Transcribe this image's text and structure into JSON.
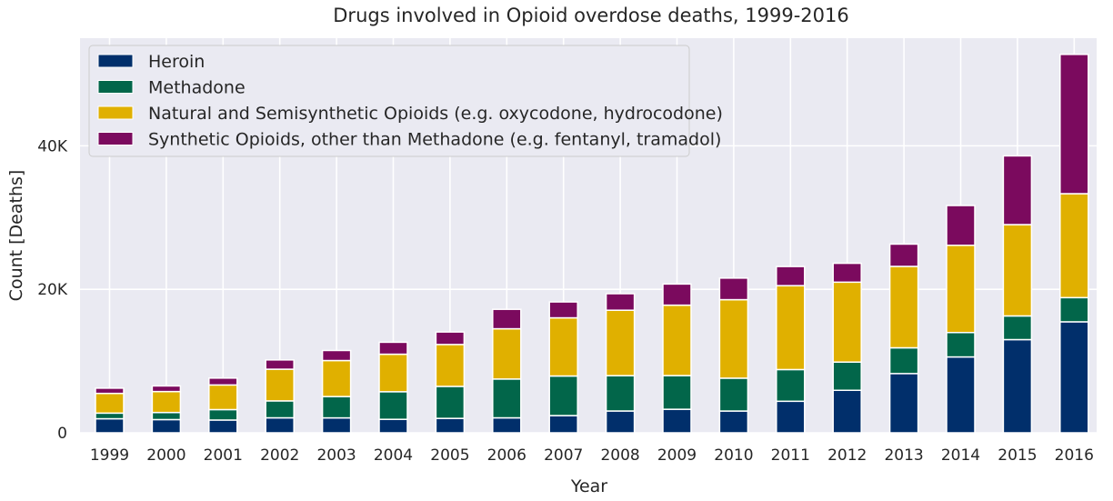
{
  "chart_data": {
    "type": "bar",
    "stacked": true,
    "title": "Drugs involved in Opioid overdose deaths, 1999-2016",
    "xlabel": "Year",
    "ylabel": "Count [Deaths]",
    "ylim": [
      0,
      55000
    ],
    "yticks": [
      0,
      20000,
      40000
    ],
    "ytick_labels": [
      "0",
      "20K",
      "40K"
    ],
    "grid": true,
    "legend_position": "top-left",
    "categories": [
      "1999",
      "2000",
      "2001",
      "2002",
      "2003",
      "2004",
      "2005",
      "2006",
      "2007",
      "2008",
      "2009",
      "2010",
      "2011",
      "2012",
      "2013",
      "2014",
      "2015",
      "2016"
    ],
    "series": [
      {
        "name": "Heroin",
        "color": "#012f6b",
        "values": [
          1960,
          1842,
          1779,
          2089,
          2080,
          1878,
          2009,
          2088,
          2399,
          3041,
          3278,
          3036,
          4397,
          5925,
          8257,
          10574,
          12989,
          15469
        ]
      },
      {
        "name": "Methadone",
        "color": "#02664a",
        "values": [
          784,
          988,
          1456,
          2358,
          2972,
          3845,
          4460,
          5406,
          5518,
          4924,
          4696,
          4577,
          4418,
          3932,
          3591,
          3400,
          3301,
          3373
        ]
      },
      {
        "name": "Natural and Semisynthetic Opioids (e.g. oxycodone, hydrocodone)",
        "color": "#e0b000",
        "values": [
          2749,
          2920,
          3434,
          4416,
          5020,
          5232,
          5839,
          7008,
          8109,
          9119,
          9816,
          10943,
          11693,
          11140,
          11346,
          12159,
          12727,
          14487
        ]
      },
      {
        "name": "Synthetic Opioids, other than Methadone (e.g. fentanyl, tramadol)",
        "color": "#7b0a5e",
        "values": [
          730,
          782,
          957,
          1295,
          1400,
          1664,
          1742,
          2707,
          2213,
          2306,
          2946,
          3007,
          2666,
          2628,
          3105,
          5544,
          9580,
          19413
        ]
      }
    ]
  }
}
